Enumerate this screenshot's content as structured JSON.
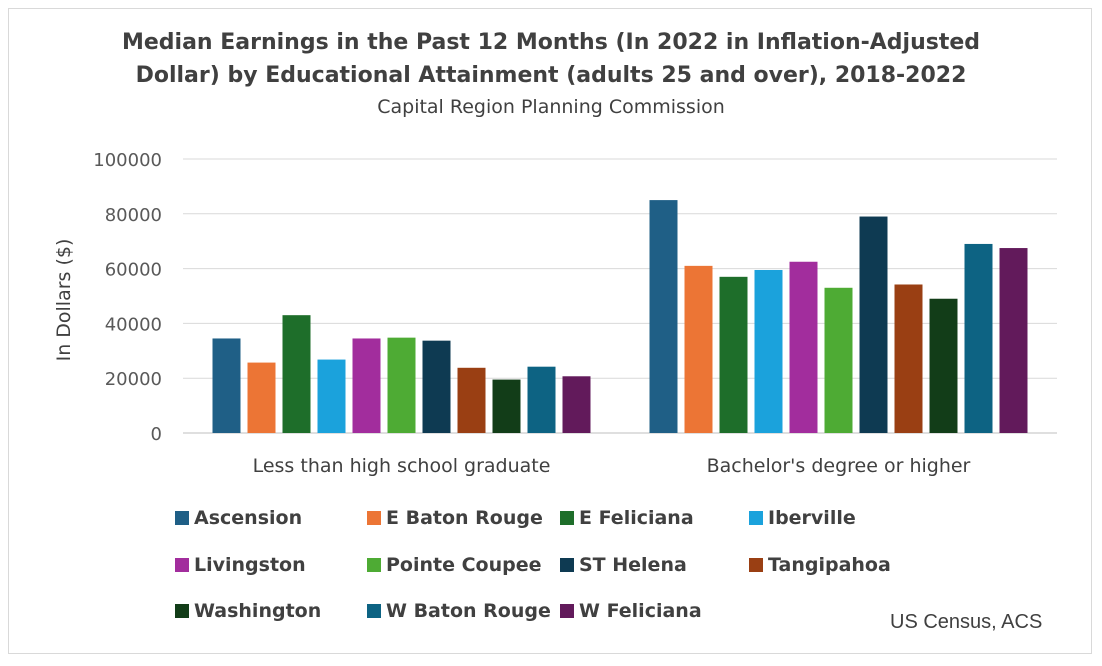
{
  "chart_data": {
    "type": "bar",
    "title": "Median Earnings in the Past 12 Months (In 2022 in Inflation-Adjusted Dollar) by Educational Attainment (adults 25 and over), 2018-2022",
    "title_lines": [
      "Median Earnings in the Past 12 Months (In 2022 in Inflation-Adjusted",
      "Dollar) by Educational Attainment (adults 25 and over), 2018-2022"
    ],
    "subtitle": "Capital Region Planning Commission",
    "ylabel": "In Dollars ($)",
    "xlabel": "",
    "ylim": [
      0,
      100000
    ],
    "yticks": [
      "0",
      "20000",
      "40000",
      "60000",
      "80000",
      "100000"
    ],
    "grid": true,
    "legend_position": "bottom",
    "categories": [
      "Less than high school graduate",
      "Bachelor's degree or higher"
    ],
    "series": [
      {
        "name": "Ascension",
        "color": "#1f5f86",
        "values": [
          34500,
          85000
        ]
      },
      {
        "name": "E Baton Rouge",
        "color": "#ec7535",
        "values": [
          25700,
          61000
        ]
      },
      {
        "name": "E Feliciana",
        "color": "#1e6e2a",
        "values": [
          43000,
          57000
        ]
      },
      {
        "name": "Iberville",
        "color": "#1ba2dc",
        "values": [
          26800,
          59500
        ]
      },
      {
        "name": "Livingston",
        "color": "#a22d9d",
        "values": [
          34500,
          62500
        ]
      },
      {
        "name": "Pointe Coupee",
        "color": "#4eab34",
        "values": [
          34800,
          53000
        ]
      },
      {
        "name": "ST Helena",
        "color": "#0e3a52",
        "values": [
          33700,
          79000
        ]
      },
      {
        "name": "Tangipahoa",
        "color": "#9a3f13",
        "values": [
          23800,
          54200
        ]
      },
      {
        "name": "Washington",
        "color": "#123d18",
        "values": [
          19500,
          49000
        ]
      },
      {
        "name": "W Baton Rouge",
        "color": "#0d6383",
        "values": [
          24200,
          69000
        ]
      },
      {
        "name": "W Feliciana",
        "color": "#621a5b",
        "values": [
          20700,
          67500
        ]
      }
    ],
    "source": "US Census, ACS"
  }
}
